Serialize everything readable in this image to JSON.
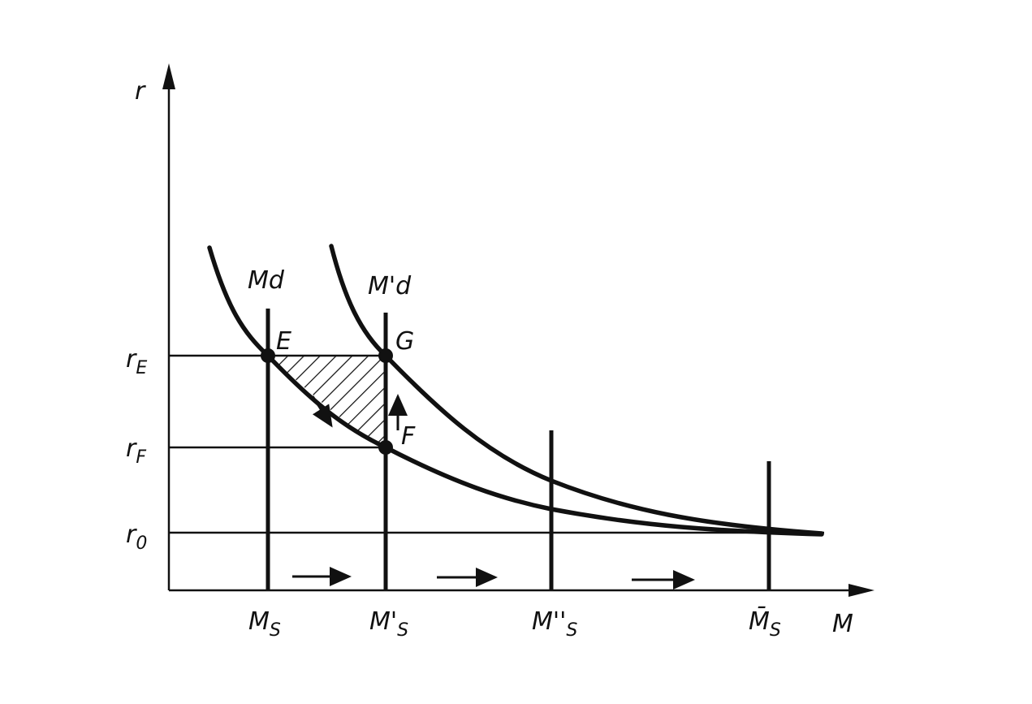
{
  "axes": {
    "y_label": "r",
    "x_label": "M"
  },
  "curves": [
    "Md",
    "M'd"
  ],
  "points": [
    "E",
    "G",
    "F"
  ],
  "rate_levels": [
    {
      "main": "r",
      "sub": "E"
    },
    {
      "main": "r",
      "sub": "F"
    },
    {
      "main": "r",
      "sub": "0"
    }
  ],
  "money_supply": [
    {
      "main": "M",
      "sub": "S"
    },
    {
      "main": "M'",
      "sub": "S"
    },
    {
      "main": "M''",
      "sub": "S"
    },
    {
      "main": "M̄",
      "sub": "S"
    }
  ]
}
